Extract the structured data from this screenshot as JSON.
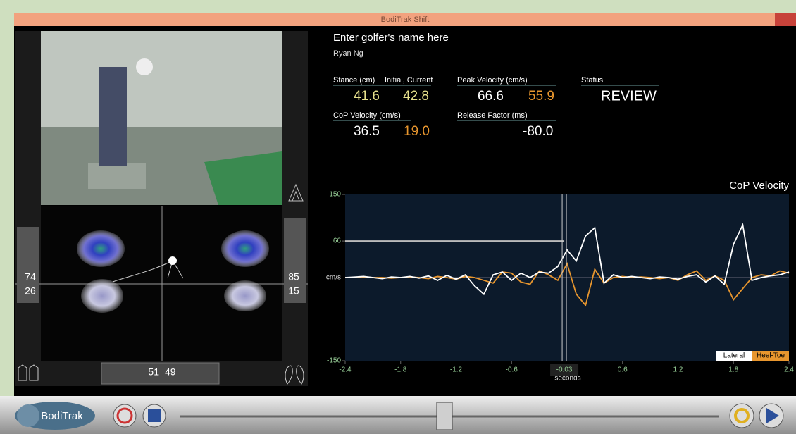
{
  "window": {
    "title": "BodiTrak Shift"
  },
  "golfer": {
    "prompt": "Enter golfer's name here",
    "name": "Ryan Ng"
  },
  "metrics": {
    "stance": {
      "label": "Stance (cm)",
      "sublabel": "Initial, Current",
      "initial": "41.6",
      "current": "42.8"
    },
    "peak_velocity": {
      "label": "Peak Velocity (cm/s)",
      "lateral": "66.6",
      "heel_toe": "55.9"
    },
    "status": {
      "label": "Status",
      "value": "REVIEW"
    },
    "cop_velocity": {
      "label": "CoP Velocity (cm/s)",
      "lateral": "36.5",
      "heel_toe": "19.0"
    },
    "release_factor": {
      "label": "Release Factor (ms)",
      "value": "-80.0"
    }
  },
  "pressure": {
    "left_top": "74",
    "left_bottom": "26",
    "right_top": "85",
    "right_bottom": "15",
    "split_left": "51",
    "split_right": "49"
  },
  "toolbar": {
    "logo": "BodiTrak"
  },
  "chart_data": {
    "type": "line",
    "title": "CoP Velocity",
    "y_label": "cm/s",
    "x_label": "seconds",
    "xlim": [
      -2.4,
      2.4
    ],
    "ylim": [
      -150,
      150
    ],
    "xticks": [
      -2.4,
      -1.8,
      -1.2,
      -0.6,
      0.6,
      1.2,
      1.8,
      2.4
    ],
    "yticks": [
      150,
      66,
      -150
    ],
    "cursor": -0.03,
    "x": [
      -2.4,
      -2.3,
      -2.2,
      -2.1,
      -2.0,
      -1.9,
      -1.8,
      -1.7,
      -1.6,
      -1.5,
      -1.4,
      -1.3,
      -1.2,
      -1.1,
      -1.0,
      -0.9,
      -0.8,
      -0.7,
      -0.6,
      -0.5,
      -0.4,
      -0.3,
      -0.2,
      -0.1,
      0.0,
      0.1,
      0.2,
      0.3,
      0.4,
      0.5,
      0.6,
      0.7,
      0.8,
      0.9,
      1.0,
      1.1,
      1.2,
      1.3,
      1.4,
      1.5,
      1.6,
      1.7,
      1.8,
      1.9,
      2.0,
      2.1,
      2.2,
      2.3,
      2.4
    ],
    "series": [
      {
        "name": "Heel-Toe",
        "color": "#e8962e",
        "values": [
          0,
          0,
          1,
          0,
          0,
          -1,
          0,
          1,
          0,
          -2,
          2,
          0,
          -3,
          2,
          0,
          -5,
          -10,
          10,
          8,
          -8,
          -12,
          12,
          5,
          -5,
          25,
          -30,
          -50,
          15,
          -10,
          0,
          2,
          0,
          1,
          0,
          -2,
          0,
          -5,
          5,
          12,
          -5,
          3,
          -5,
          -40,
          -20,
          0,
          5,
          3,
          12,
          8
        ]
      },
      {
        "name": "Lateral",
        "color": "#ffffff",
        "values": [
          0,
          1,
          2,
          0,
          -2,
          1,
          0,
          2,
          -1,
          3,
          -5,
          4,
          -3,
          5,
          -15,
          -30,
          5,
          10,
          -5,
          8,
          0,
          10,
          8,
          20,
          50,
          30,
          75,
          90,
          -10,
          5,
          0,
          2,
          0,
          -2,
          1,
          0,
          -3,
          2,
          5,
          -8,
          3,
          -12,
          60,
          95,
          -5,
          0,
          3,
          5,
          10
        ]
      }
    ]
  }
}
